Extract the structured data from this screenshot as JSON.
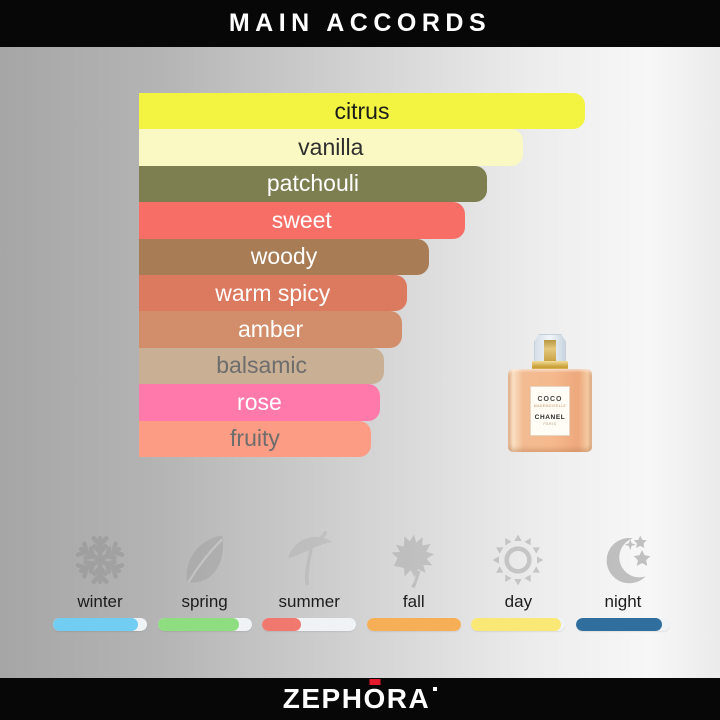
{
  "header": {
    "title": "MAIN ACCORDS"
  },
  "chart_data": {
    "type": "bar",
    "orientation": "horizontal",
    "title": "MAIN ACCORDS",
    "categories": [
      "citrus",
      "vanilla",
      "patchouli",
      "sweet",
      "woody",
      "warm spicy",
      "amber",
      "balsamic",
      "rose",
      "fruity"
    ],
    "values": [
      100,
      86,
      78,
      73,
      65,
      60,
      59,
      55,
      54,
      52
    ],
    "unit": "percent of longest bar",
    "bar_colors": [
      "#f2f441",
      "#fbf9c3",
      "#7e7f51",
      "#f76e67",
      "#a87c55",
      "#dc7a60",
      "#d28e6a",
      "#c9b094",
      "#ff7aab",
      "#fc9c84"
    ],
    "label_colors": [
      "#1b1b1b",
      "#2e2e2e",
      "#ffffff",
      "#ffffff",
      "#ffffff",
      "#ffffff",
      "#ffffff",
      "#6d6d6d",
      "#ffffff",
      "#6d6d6d"
    ],
    "legend": "none",
    "axes": "none"
  },
  "bottle": {
    "line1": "COCO",
    "line2": "MADEMOISELLE",
    "line3": "CHANEL",
    "line4": "PARIS"
  },
  "seasons": {
    "items": [
      {
        "label": "winter",
        "icon": "snowflake-icon",
        "percent": 90,
        "color": "#72cdf2"
      },
      {
        "label": "spring",
        "icon": "leaf-icon",
        "percent": 87,
        "color": "#8edd80"
      },
      {
        "label": "summer",
        "icon": "beach-umbrella-icon",
        "percent": 41,
        "color": "#f0786f"
      },
      {
        "label": "fall",
        "icon": "maple-leaf-icon",
        "percent": 100,
        "color": "#f6ae57"
      },
      {
        "label": "day",
        "icon": "sun-icon",
        "percent": 95,
        "color": "#f9e876"
      },
      {
        "label": "night",
        "icon": "moon-stars-icon",
        "percent": 91,
        "color": "#2f6e9d"
      }
    ],
    "track_color": "#eff3f6"
  },
  "footer": {
    "logo_prefix": "ZEPH",
    "logo_o": "O",
    "logo_suffix": "RA",
    "accent_red": "#e4182b"
  }
}
